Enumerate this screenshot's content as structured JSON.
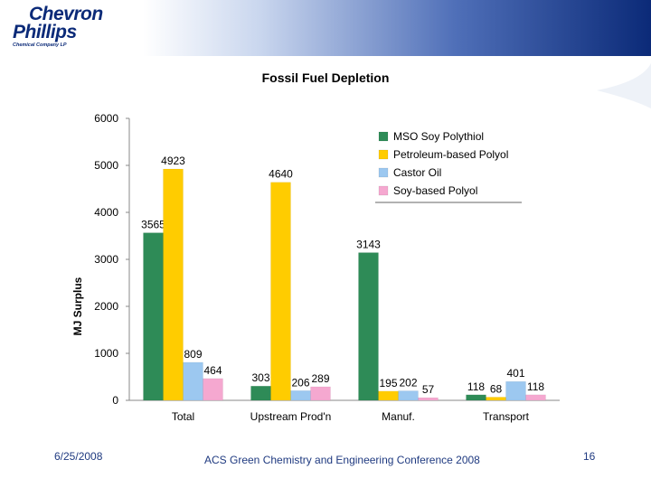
{
  "slide": {
    "logo_line1": "Chevron",
    "logo_line2": "Phillips",
    "logo_line3": "Chemical Company LP",
    "footer_date": "6/25/2008",
    "footer_conference": "ACS Green Chemistry and Engineering Conference 2008",
    "footer_page": "16",
    "colors": {
      "header_dark": "#0b2a78",
      "footer_text": "#1f3a80"
    }
  },
  "chart_data": {
    "type": "bar",
    "title": "Fossil Fuel Depletion",
    "xlabel": "",
    "ylabel": "MJ Surplus",
    "ylim": [
      0,
      6000
    ],
    "yticks": [
      0,
      1000,
      2000,
      3000,
      4000,
      5000,
      6000
    ],
    "grid": false,
    "legend_position": "top-right",
    "categories": [
      "Total",
      "Upstream Prod'n",
      "Manuf.",
      "Transport"
    ],
    "series": [
      {
        "name": "MSO Soy Polythiol",
        "color": "#2e8b57",
        "values": [
          3565,
          303,
          3143,
          118
        ],
        "labels": [
          "3565",
          "303",
          "3143",
          "118"
        ]
      },
      {
        "name": "Petroleum-based Polyol",
        "color": "#ffcc00",
        "values": [
          4923,
          4640,
          195,
          68
        ],
        "labels": [
          "4923",
          "4640",
          "195",
          "68"
        ]
      },
      {
        "name": "Castor Oil",
        "color": "#9cc8f0",
        "values": [
          809,
          206,
          202,
          401
        ],
        "labels": [
          "809",
          "206",
          "202",
          "401"
        ]
      },
      {
        "name": "Soy-based Polyol",
        "color": "#f5a8d0",
        "values": [
          464,
          289,
          57,
          118
        ],
        "labels": [
          "464",
          "289",
          "57",
          "118"
        ]
      }
    ]
  }
}
